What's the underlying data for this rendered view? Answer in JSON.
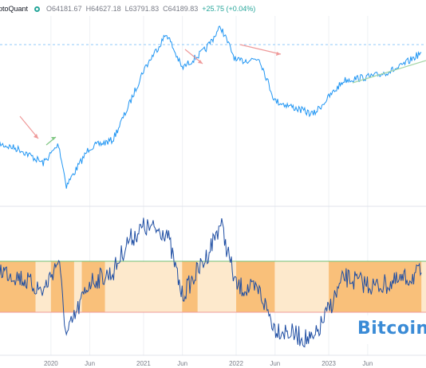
{
  "header": {
    "source": "ptoQuant",
    "open": "O64181.67",
    "high": "H64627.18",
    "low": "L63791.83",
    "close": "C64189.83",
    "change": "+25.75 (+0.04%)"
  },
  "watermark": "Bitcoin",
  "colors": {
    "price_line": "#2196f3",
    "oscillator_line": "#1f4ea3",
    "band_light": "#fde9cc",
    "band_dark": "#f9c07a",
    "upper_line": "#6fbf73",
    "lower_line": "#ef9a9a",
    "arrow_down": "#ef9a9a",
    "arrow_up": "#81c784"
  },
  "chart_data": {
    "type": "line",
    "x_ticks": [
      "2020",
      "Jun",
      "2021",
      "Jun",
      "2022",
      "Jun",
      "2023",
      "Jun"
    ],
    "series": [
      {
        "panel": "price",
        "points": [
          [
            "2019-06",
            10000
          ],
          [
            "2019-09",
            9000
          ],
          [
            "2019-12",
            7200
          ],
          [
            "2020-02",
            9800
          ],
          [
            "2020-03",
            5000
          ],
          [
            "2020-06",
            9300
          ],
          [
            "2020-09",
            10500
          ],
          [
            "2020-11",
            18000
          ],
          [
            "2021-01",
            33000
          ],
          [
            "2021-04",
            60000
          ],
          [
            "2021-06",
            34000
          ],
          [
            "2021-09",
            46000
          ],
          [
            "2021-11",
            67000
          ],
          [
            "2022-01",
            38000
          ],
          [
            "2022-04",
            40000
          ],
          [
            "2022-06",
            20000
          ],
          [
            "2022-11",
            16000
          ],
          [
            "2023-03",
            28000
          ],
          [
            "2023-07",
            30000
          ],
          [
            "2023-10",
            34000
          ],
          [
            "2024-01",
            44000
          ]
        ]
      },
      {
        "panel": "oscillator",
        "points": [
          [
            "2019-06",
            0.6
          ],
          [
            "2019-09",
            0.4
          ],
          [
            "2019-12",
            0.1
          ],
          [
            "2020-02",
            0.8
          ],
          [
            "2020-03",
            -0.9
          ],
          [
            "2020-06",
            0.3
          ],
          [
            "2020-09",
            0.5
          ],
          [
            "2020-11",
            1.2
          ],
          [
            "2021-01",
            1.5
          ],
          [
            "2021-04",
            1.4
          ],
          [
            "2021-06",
            0.0
          ],
          [
            "2021-09",
            0.8
          ],
          [
            "2021-11",
            1.6
          ],
          [
            "2022-01",
            0.2
          ],
          [
            "2022-04",
            0.1
          ],
          [
            "2022-06",
            -0.7
          ],
          [
            "2022-11",
            -1.0
          ],
          [
            "2023-03",
            0.4
          ],
          [
            "2023-07",
            0.2
          ],
          [
            "2023-10",
            0.3
          ],
          [
            "2024-01",
            0.5
          ]
        ]
      }
    ],
    "bands": [
      {
        "from": "2019-06",
        "to": "2019-11",
        "shade": "dark"
      },
      {
        "from": "2020-01",
        "to": "2020-04",
        "shade": "dark"
      },
      {
        "from": "2020-05",
        "to": "2020-08",
        "shade": "dark"
      },
      {
        "from": "2021-06",
        "to": "2021-08",
        "shade": "dark"
      },
      {
        "from": "2022-01",
        "to": "2022-06",
        "shade": "dark"
      },
      {
        "from": "2023-01",
        "to": "2024-01",
        "shade": "dark"
      }
    ]
  }
}
